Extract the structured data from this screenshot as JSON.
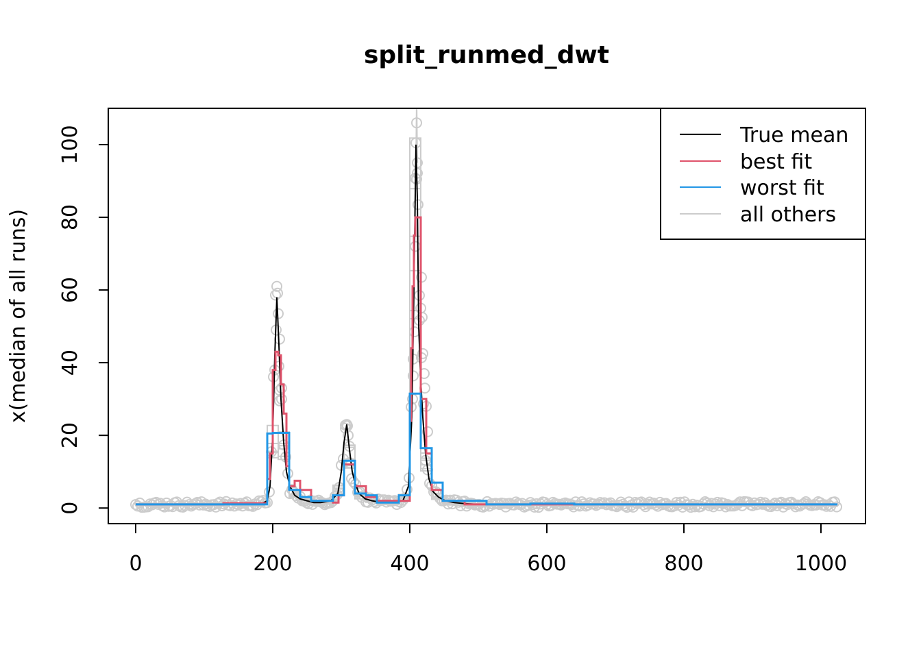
{
  "chart_data": {
    "type": "line",
    "title": "split_runmed_dwt",
    "xlabel": "",
    "ylabel": "x(median of all runs)",
    "xlim": [
      -40,
      1065
    ],
    "ylim": [
      -4.3,
      110
    ],
    "x_ticks": [
      0,
      200,
      400,
      600,
      800,
      1000
    ],
    "y_ticks": [
      0,
      20,
      40,
      60,
      80,
      100
    ],
    "x_tick_labels": [
      "0",
      "200",
      "400",
      "600",
      "800",
      "1000"
    ],
    "y_tick_labels": [
      "0",
      "20",
      "40",
      "60",
      "80",
      "100"
    ],
    "grid": false,
    "legend": {
      "position": "top-right",
      "entries": [
        {
          "label": "True mean",
          "color": "#000000"
        },
        {
          "label": "best fit",
          "color": "#DF536B"
        },
        {
          "label": "worst fit",
          "color": "#2297E6"
        },
        {
          "label": "all others",
          "color": "#CCCCCC"
        }
      ]
    },
    "series": [
      {
        "name": "True mean",
        "color": "#000000",
        "style": "line",
        "x": [
          0,
          150,
          185,
          192,
          196,
          200,
          203,
          206,
          209,
          212,
          216,
          220,
          225,
          232,
          240,
          250,
          260,
          270,
          285,
          295,
          300,
          304,
          308,
          312,
          316,
          320,
          326,
          335,
          345,
          360,
          375,
          390,
          398,
          403,
          406,
          409,
          411,
          413,
          416,
          419,
          423,
          428,
          434,
          442,
          452,
          465,
          480,
          500,
          530,
          600,
          700,
          800,
          900,
          1024
        ],
        "y": [
          1,
          1,
          1.3,
          2,
          6,
          20,
          42,
          58,
          45,
          30,
          18,
          10,
          6,
          3.5,
          2.5,
          2,
          1.5,
          1.5,
          2,
          4,
          10,
          18,
          23,
          16,
          10,
          7,
          4,
          2.5,
          2,
          1.5,
          1.5,
          2,
          6,
          25,
          60,
          100,
          85,
          50,
          35,
          25,
          15,
          8,
          4.5,
          3,
          2,
          1.5,
          1.2,
          1,
          1,
          1,
          1,
          1,
          1,
          1
        ]
      },
      {
        "name": "best fit",
        "color": "#DF536B",
        "style": "step",
        "x": [
          0,
          128,
          192,
          196,
          200,
          204,
          208,
          212,
          216,
          220,
          224,
          232,
          240,
          256,
          288,
          296,
          304,
          320,
          336,
          352,
          384,
          400,
          402,
          404,
          406,
          408,
          416,
          424,
          432,
          448,
          480,
          512,
          640,
          768,
          1024
        ],
        "y": [
          1,
          1.3,
          8,
          15,
          38,
          43,
          42,
          34,
          26,
          11.5,
          6,
          7.5,
          5,
          2,
          1.5,
          3.5,
          12,
          6,
          3,
          2,
          2,
          24,
          44,
          61,
          75,
          80,
          30,
          15,
          5,
          2,
          1,
          1,
          1,
          1,
          1
        ],
        "steps_x": [
          0,
          128,
          192,
          196,
          200,
          204,
          208,
          212,
          216,
          220,
          224,
          232,
          240,
          256,
          288,
          296,
          304,
          320,
          336,
          352,
          384,
          400,
          402,
          404,
          406,
          408,
          416,
          424,
          432,
          448,
          480,
          512,
          640,
          768,
          1024
        ]
      },
      {
        "name": "worst fit",
        "color": "#2297E6",
        "style": "step",
        "x": [
          0,
          192,
          200,
          224,
          240,
          256,
          288,
          304,
          320,
          336,
          352,
          384,
          400,
          416,
          424,
          432,
          448,
          512,
          576,
          640,
          1024
        ],
        "y": [
          1,
          20.5,
          20.7,
          5,
          3,
          2,
          3.5,
          13,
          4,
          3.5,
          1.5,
          3.5,
          31.5,
          16.5,
          16.5,
          7,
          2,
          1,
          1.2,
          1,
          1
        ]
      }
    ],
    "others": {
      "name": "all others",
      "color": "#CCCCCC",
      "style": "points-and-lines",
      "marker": "open-circle",
      "highlights": [
        {
          "x": 206,
          "y": 61
        },
        {
          "x": 208,
          "y": 53.5
        },
        {
          "x": 205,
          "y": 49
        },
        {
          "x": 210,
          "y": 46.5
        },
        {
          "x": 209,
          "y": 39
        },
        {
          "x": 203,
          "y": 38
        },
        {
          "x": 213,
          "y": 33
        },
        {
          "x": 210,
          "y": 29.5
        },
        {
          "x": 308,
          "y": 23
        },
        {
          "x": 306,
          "y": 22
        },
        {
          "x": 310,
          "y": 20
        },
        {
          "x": 312,
          "y": 17
        },
        {
          "x": 410,
          "y": 106
        },
        {
          "x": 409,
          "y": 100.5
        },
        {
          "x": 411,
          "y": 95
        },
        {
          "x": 410,
          "y": 90.5
        },
        {
          "x": 412,
          "y": 83.5
        },
        {
          "x": 408,
          "y": 72
        },
        {
          "x": 417,
          "y": 63.5
        },
        {
          "x": 414,
          "y": 58.5
        },
        {
          "x": 416,
          "y": 55
        },
        {
          "x": 418,
          "y": 52.5
        },
        {
          "x": 407,
          "y": 48.5
        },
        {
          "x": 419,
          "y": 42.5
        },
        {
          "x": 405,
          "y": 41
        },
        {
          "x": 421,
          "y": 37
        },
        {
          "x": 422,
          "y": 33
        },
        {
          "x": 404,
          "y": 30
        },
        {
          "x": 424,
          "y": 28
        },
        {
          "x": 426,
          "y": 21
        }
      ]
    }
  }
}
